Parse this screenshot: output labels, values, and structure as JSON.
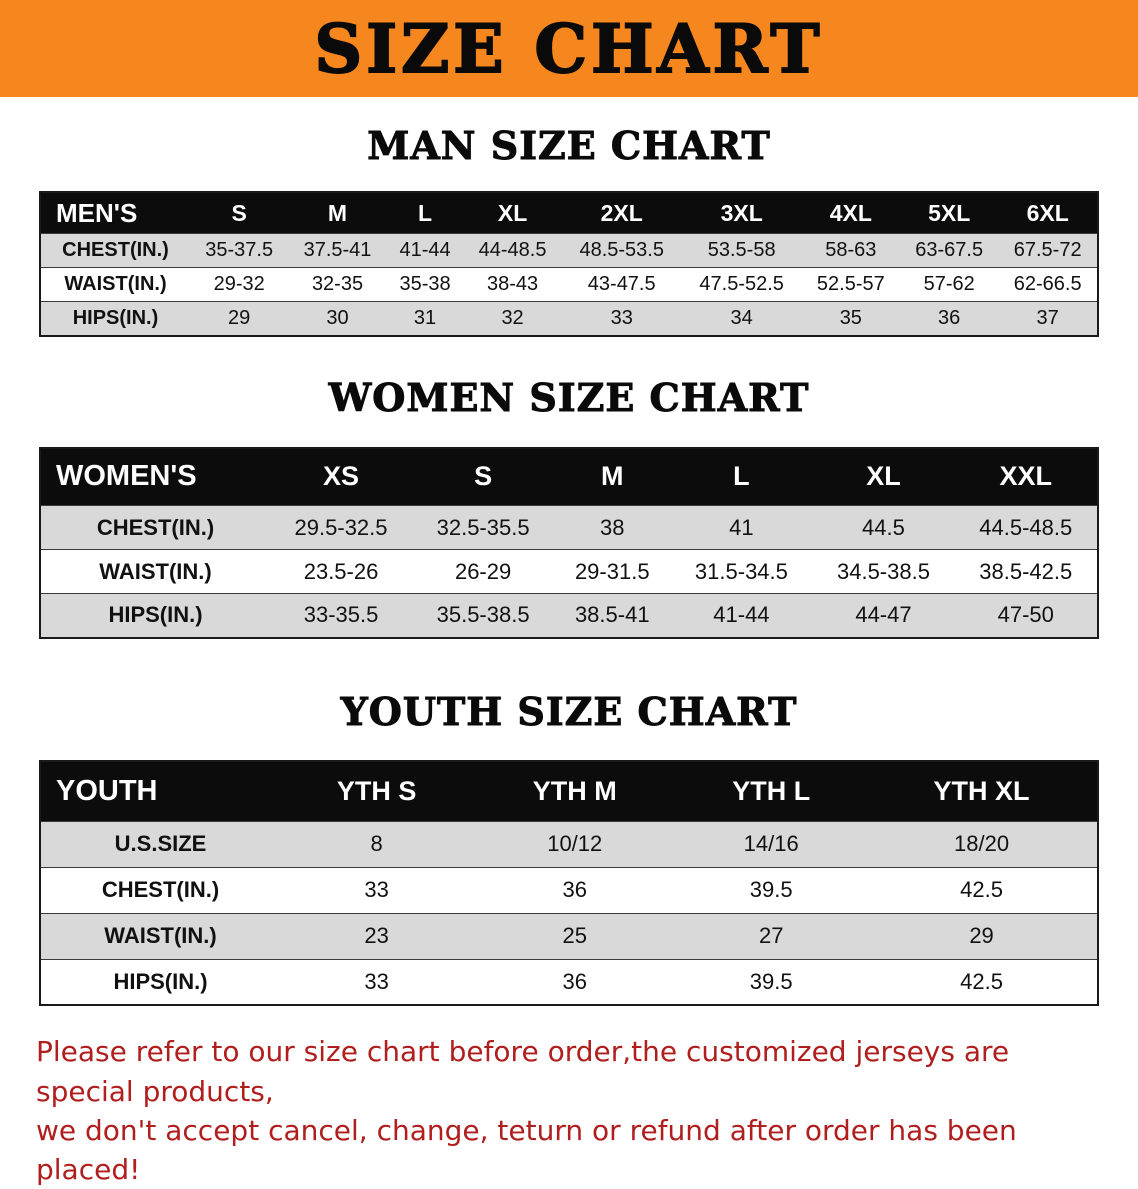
{
  "banner": {
    "title": "SIZE CHART"
  },
  "colors": {
    "banner_bg": "#F6871F",
    "table_header_bg": "#0C0C0C",
    "row_stripe": "#D9D9D9",
    "footer_text": "#B01E1E"
  },
  "sections": [
    {
      "heading": "MAN SIZE CHART",
      "table": {
        "header": [
          "MEN'S",
          "S",
          "M",
          "L",
          "XL",
          "2XL",
          "3XL",
          "4XL",
          "5XL",
          "6XL"
        ],
        "rows": [
          [
            "CHEST(IN.)",
            "35-37.5",
            "37.5-41",
            "41-44",
            "44-48.5",
            "48.5-53.5",
            "53.5-58",
            "58-63",
            "63-67.5",
            "67.5-72"
          ],
          [
            "WAIST(IN.)",
            "29-32",
            "32-35",
            "35-38",
            "38-43",
            "43-47.5",
            "47.5-52.5",
            "52.5-57",
            "57-62",
            "62-66.5"
          ],
          [
            "HIPS(IN.)",
            "29",
            "30",
            "31",
            "32",
            "33",
            "34",
            "35",
            "36",
            "37"
          ]
        ]
      }
    },
    {
      "heading": "WOMEN SIZE CHART",
      "table": {
        "header": [
          "WOMEN'S",
          "XS",
          "S",
          "M",
          "L",
          "XL",
          "XXL"
        ],
        "rows": [
          [
            "CHEST(IN.)",
            "29.5-32.5",
            "32.5-35.5",
            "38",
            "41",
            "44.5",
            "44.5-48.5"
          ],
          [
            "WAIST(IN.)",
            "23.5-26",
            "26-29",
            "29-31.5",
            "31.5-34.5",
            "34.5-38.5",
            "38.5-42.5"
          ],
          [
            "HIPS(IN.)",
            "33-35.5",
            "35.5-38.5",
            "38.5-41",
            "41-44",
            "44-47",
            "47-50"
          ]
        ]
      }
    },
    {
      "heading": "YOUTH SIZE CHART",
      "table": {
        "header": [
          "YOUTH",
          "YTH S",
          "YTH M",
          "YTH L",
          "YTH XL"
        ],
        "rows": [
          [
            "U.S.SIZE",
            "8",
            "10/12",
            "14/16",
            "18/20"
          ],
          [
            "CHEST(IN.)",
            "33",
            "36",
            "39.5",
            "42.5"
          ],
          [
            "WAIST(IN.)",
            "23",
            "25",
            "27",
            "29"
          ],
          [
            "HIPS(IN.)",
            "33",
            "36",
            "39.5",
            "42.5"
          ]
        ]
      }
    }
  ],
  "footer": {
    "line1": "Please refer to our size chart before order,the customized jerseys are special products,",
    "line2": "we don't accept cancel, change, teturn or refund after order has been placed!"
  }
}
